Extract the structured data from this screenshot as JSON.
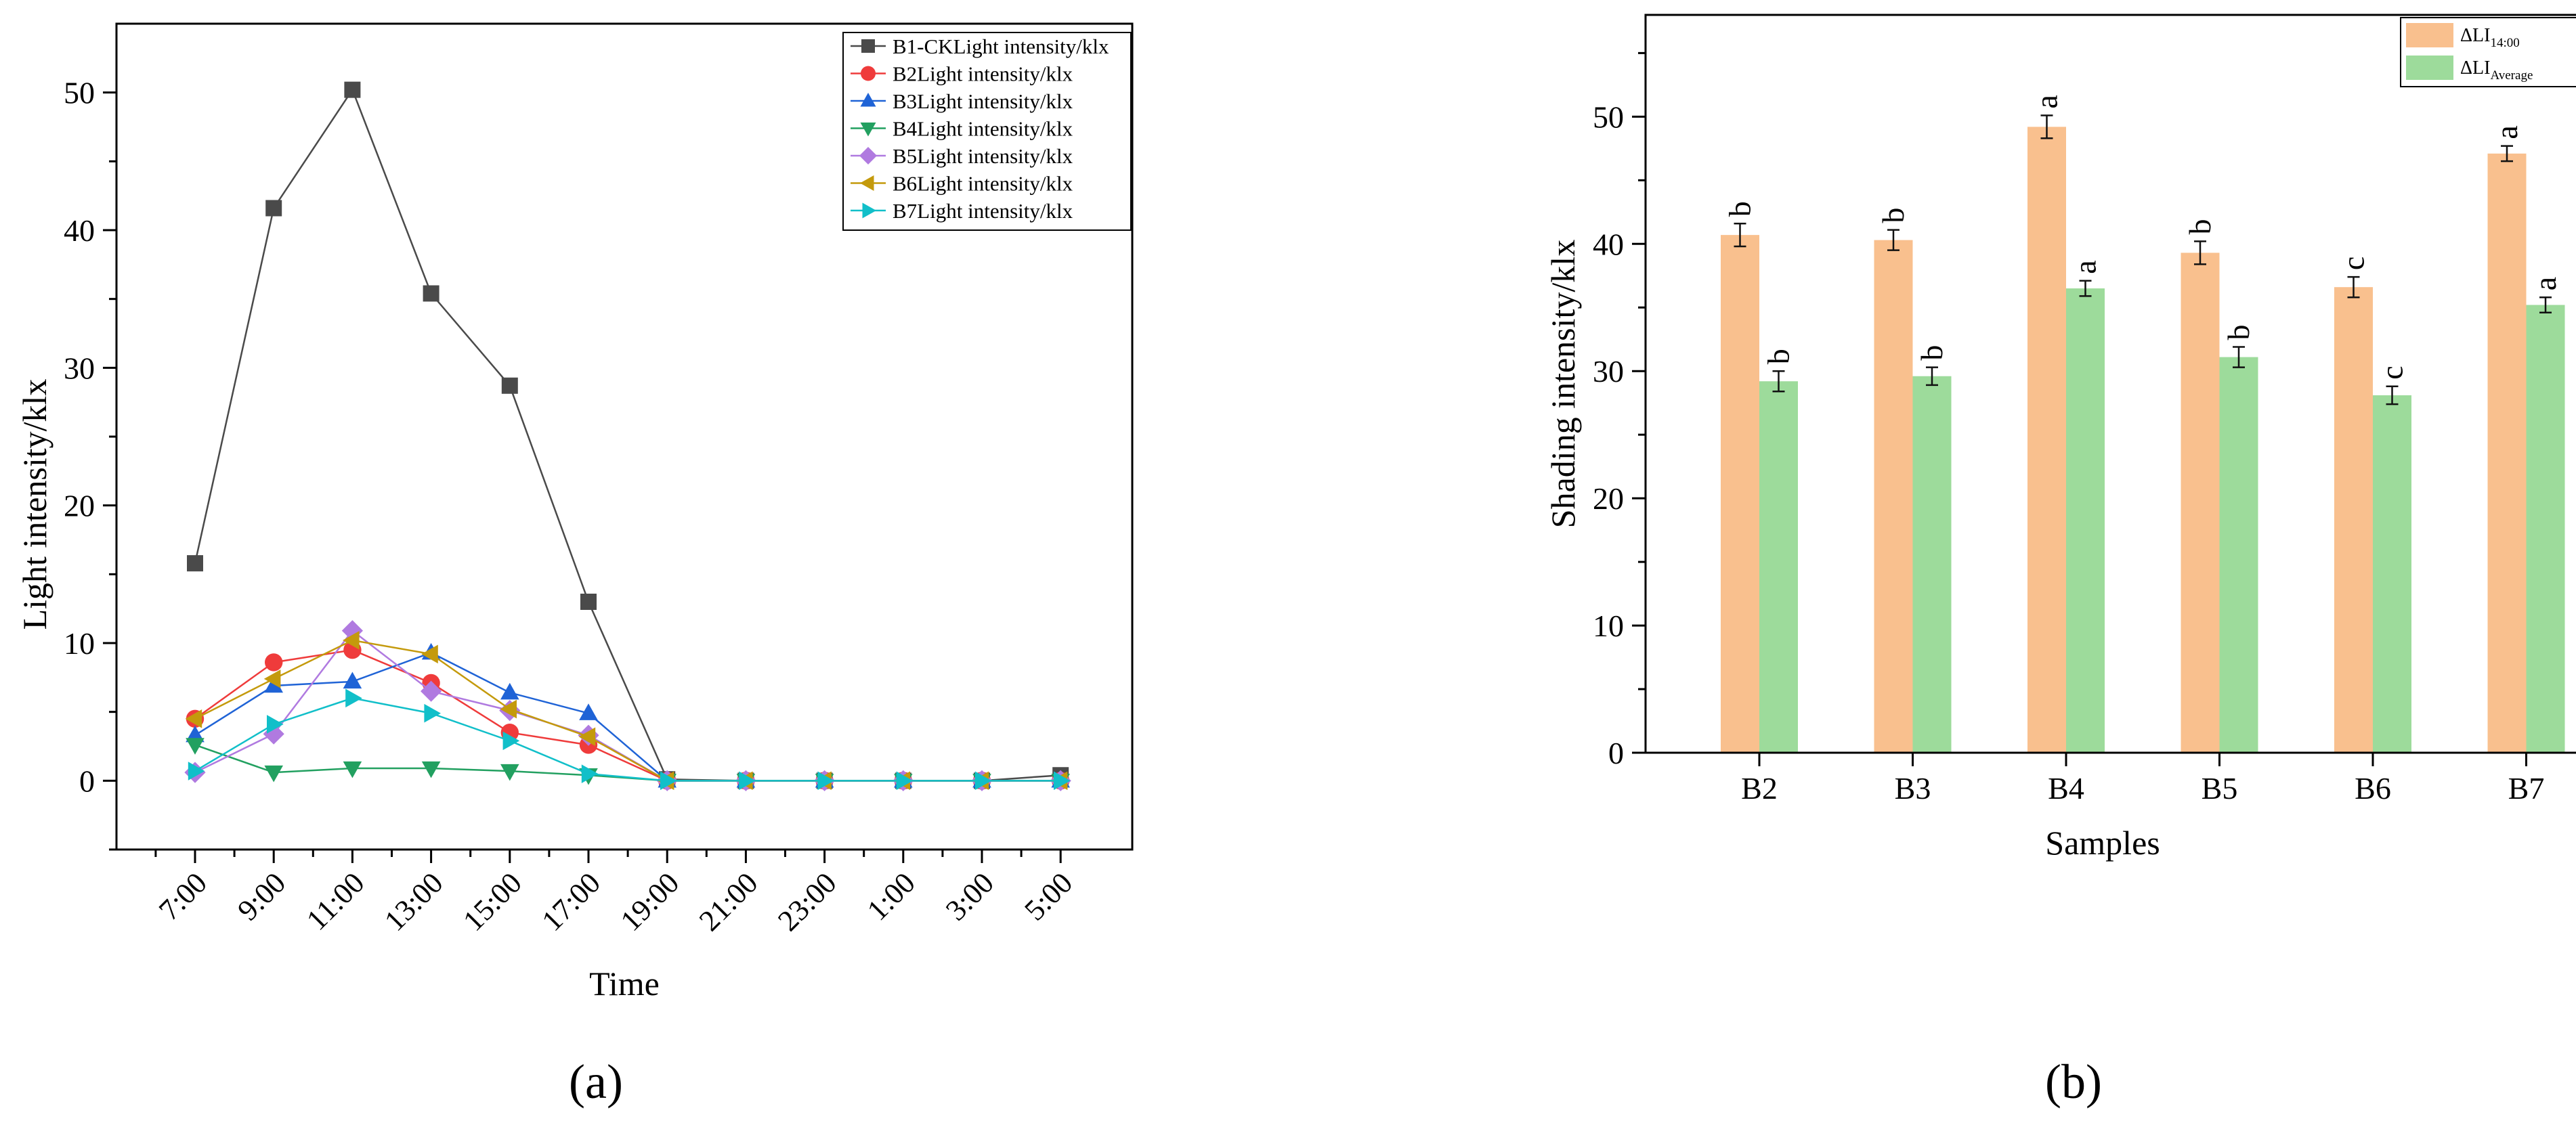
{
  "chart_data": [
    {
      "type": "line",
      "panel_label": "(a)",
      "title": "",
      "xlabel": "Time",
      "ylabel": "Light intensity/klx",
      "categories": [
        "7:00",
        "9:00",
        "11:00",
        "13:00",
        "15:00",
        "17:00",
        "19:00",
        "21:00",
        "23:00",
        "1:00",
        "3:00",
        "5:00"
      ],
      "ylim": [
        -5,
        55
      ],
      "yticks": [
        0,
        10,
        20,
        30,
        40,
        50
      ],
      "grid": false,
      "legend_position": "top-right",
      "series": [
        {
          "name": "B1-CKLight intensity/klx",
          "color": "#4a4a4a",
          "marker": "square",
          "values": [
            15.8,
            41.6,
            50.2,
            35.4,
            28.7,
            13.0,
            0.1,
            0.0,
            0.0,
            0.0,
            0.0,
            0.4
          ]
        },
        {
          "name": "B2Light intensity/klx",
          "color": "#ef3b3b",
          "marker": "circle",
          "values": [
            4.5,
            8.6,
            9.5,
            7.1,
            3.5,
            2.6,
            0.0,
            0.0,
            0.0,
            0.0,
            0.0,
            0.0
          ]
        },
        {
          "name": "B3Light intensity/klx",
          "color": "#1f63d6",
          "marker": "triangle-up",
          "values": [
            3.3,
            6.9,
            7.2,
            9.3,
            6.4,
            4.9,
            0.0,
            0.0,
            0.0,
            0.0,
            0.0,
            0.0
          ]
        },
        {
          "name": "B4Light intensity/klx",
          "color": "#22a060",
          "marker": "triangle-down",
          "values": [
            2.6,
            0.6,
            0.9,
            0.9,
            0.7,
            0.4,
            0.0,
            0.0,
            0.0,
            0.0,
            0.0,
            0.0
          ]
        },
        {
          "name": "B5Light intensity/klx",
          "color": "#b07ae0",
          "marker": "diamond",
          "values": [
            0.6,
            3.4,
            10.9,
            6.5,
            5.1,
            3.3,
            0.0,
            0.0,
            0.0,
            0.0,
            0.0,
            0.0
          ]
        },
        {
          "name": "B6Light intensity/klx",
          "color": "#c49a0c",
          "marker": "triangle-left",
          "values": [
            4.5,
            7.4,
            10.2,
            9.2,
            5.2,
            3.2,
            0.0,
            0.0,
            0.0,
            0.0,
            0.0,
            0.0
          ]
        },
        {
          "name": "B7Light intensity/klx",
          "color": "#11bfc9",
          "marker": "triangle-right",
          "values": [
            0.7,
            4.1,
            6.0,
            4.9,
            2.9,
            0.5,
            0.0,
            0.0,
            0.0,
            0.0,
            0.0,
            0.0
          ]
        }
      ]
    },
    {
      "type": "bar",
      "panel_label": "(b)",
      "title": "",
      "xlabel": "Samples",
      "ylabel": "Shading intensity/klx",
      "categories": [
        "B2",
        "B3",
        "B4",
        "B5",
        "B6",
        "B7"
      ],
      "ylim": [
        0,
        58
      ],
      "yticks": [
        0,
        10,
        20,
        30,
        40,
        50
      ],
      "grid": false,
      "legend_position": "top-right",
      "series": [
        {
          "name": "ΔLI",
          "subscript": "14:00",
          "color": "#f9c08e",
          "values": [
            40.7,
            40.3,
            49.2,
            39.3,
            36.6,
            47.1
          ],
          "errors": [
            0.9,
            0.8,
            0.9,
            0.9,
            0.8,
            0.6
          ],
          "labels": [
            "b",
            "b",
            "a",
            "b",
            "c",
            "a"
          ]
        },
        {
          "name": "ΔLI",
          "subscript": "Average",
          "color": "#9ddb9b",
          "values": [
            29.2,
            29.6,
            36.5,
            31.1,
            28.1,
            35.2
          ],
          "errors": [
            0.8,
            0.7,
            0.6,
            0.8,
            0.7,
            0.6
          ],
          "labels": [
            "b",
            "b",
            "a",
            "b",
            "c",
            "a"
          ]
        }
      ]
    }
  ]
}
